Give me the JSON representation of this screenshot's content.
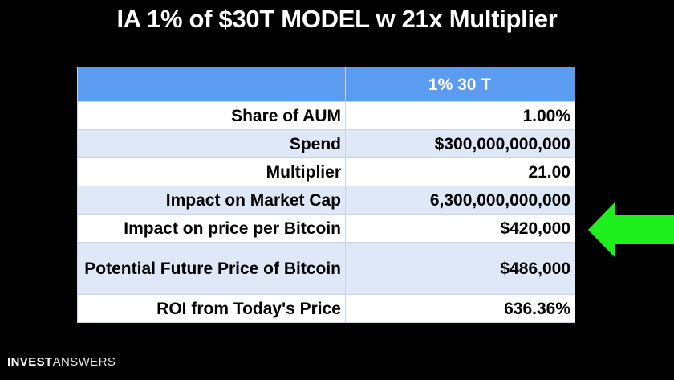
{
  "title": "IA 1% of $30T MODEL w 21x Multiplier",
  "table": {
    "header": [
      "",
      "1% 30 T"
    ],
    "rows": [
      {
        "label": "Share of AUM",
        "value": "1.00%"
      },
      {
        "label": "Spend",
        "value": "$300,000,000,000"
      },
      {
        "label": "Multiplier",
        "value": "21.00"
      },
      {
        "label": "Impact on Market Cap",
        "value": "6,300,000,000,000"
      },
      {
        "label": "Impact on price per Bitcoin",
        "value": "$420,000"
      },
      {
        "label": "Potential Future Price of Bitcoin",
        "value": "$486,000"
      },
      {
        "label": "ROI from Today's Price",
        "value": "636.36%"
      }
    ]
  },
  "colors": {
    "background": "#000000",
    "header_blue": "#5b9cf0",
    "row_alt": "#dfe8f7",
    "arrow_green": "#1ef01e"
  },
  "arrow": {
    "icon": "arrow-left-icon",
    "points_to_row": 4
  },
  "branding": {
    "logo_bold": "INVEST",
    "logo_regular": "ANSWERS"
  }
}
